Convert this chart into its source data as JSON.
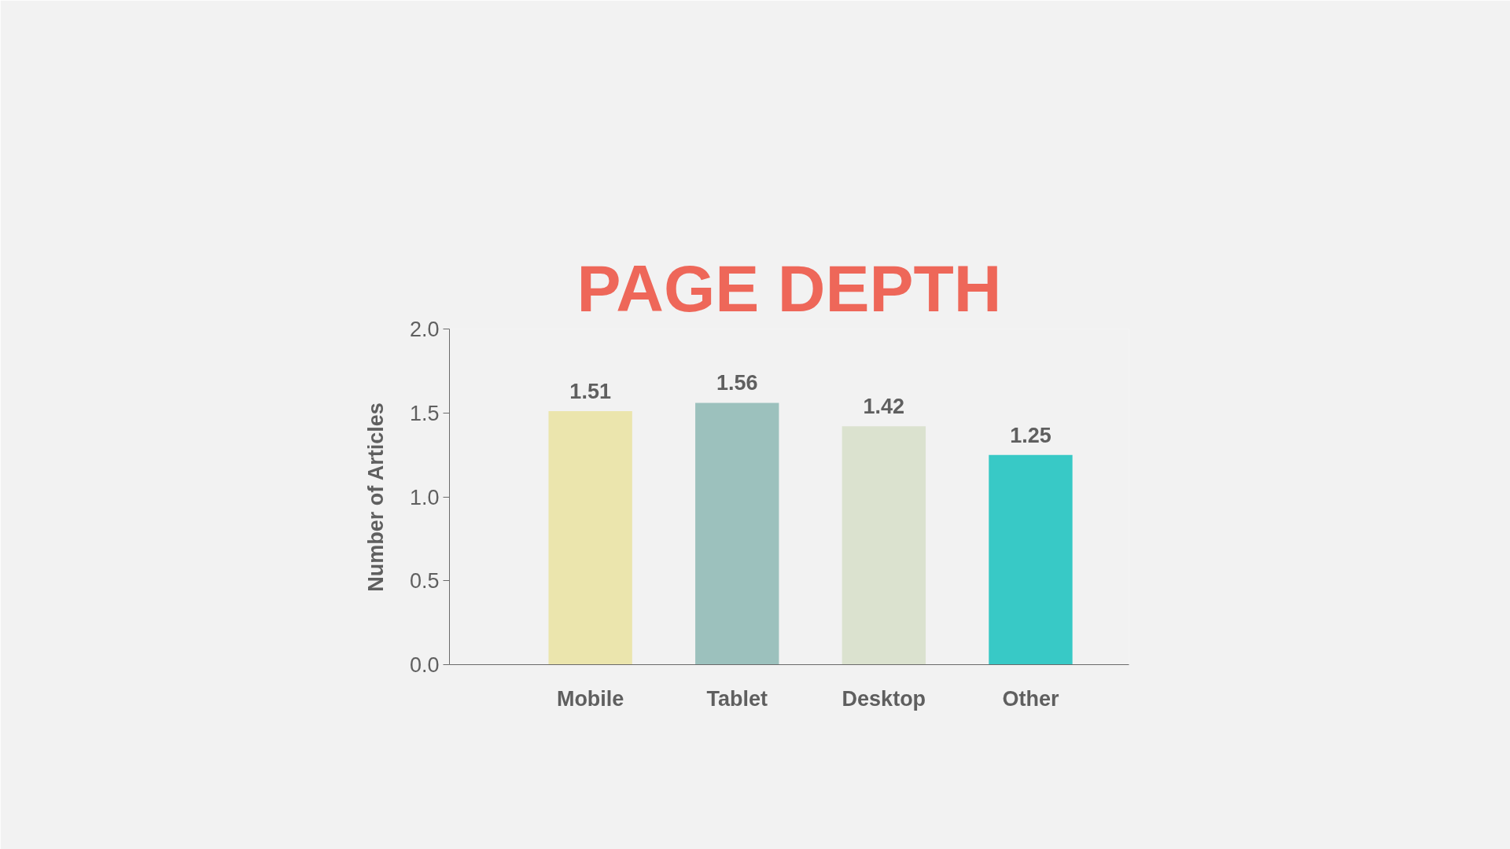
{
  "chart_data": {
    "type": "bar",
    "title": "PAGE DEPTH",
    "ylabel": "Number of Articles",
    "categories": [
      "Mobile",
      "Tablet",
      "Desktop",
      "Other"
    ],
    "values": [
      1.51,
      1.56,
      1.42,
      1.25
    ],
    "colors": [
      "#ebe5ad",
      "#9cc1bd",
      "#dbe2cf",
      "#38c9c6"
    ],
    "ylim": [
      0,
      2.0
    ],
    "yticks": [
      {
        "value": 0,
        "label": "0.0"
      },
      {
        "value": 0.5,
        "label": "0.5"
      },
      {
        "value": 1.0,
        "label": "1.0"
      },
      {
        "value": 1.5,
        "label": "1.5"
      },
      {
        "value": 2.0,
        "label": "2.0"
      }
    ],
    "data_labels": true,
    "grid": false
  }
}
